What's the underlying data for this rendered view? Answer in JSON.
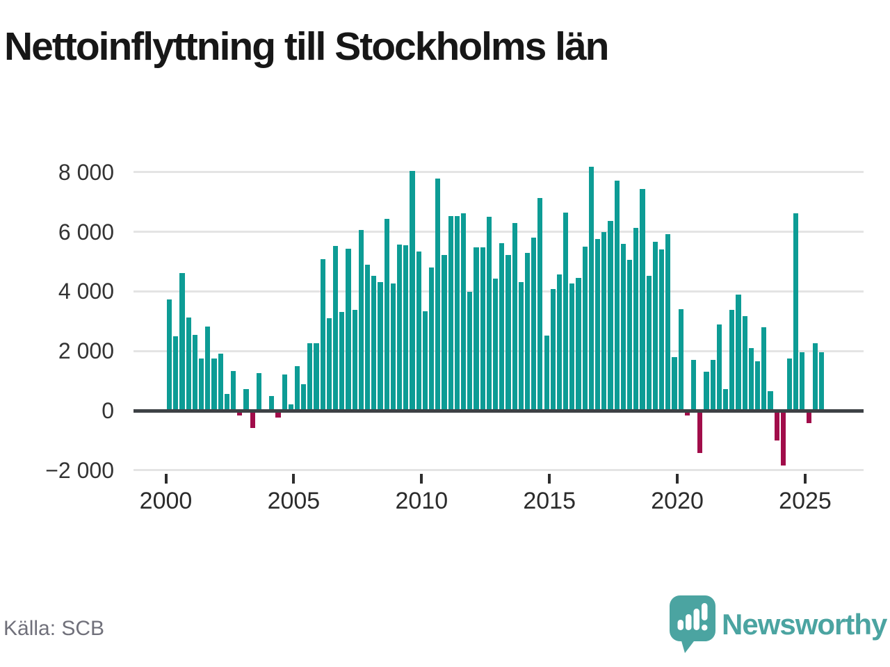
{
  "title": "Nettoinflyttning till Stockholms län",
  "source": "Källa: SCB",
  "logo": {
    "text": "Newsworthy",
    "color": "#4ba4a1",
    "icon": "newsworthy-speech-bubble-bar-chart-icon"
  },
  "chart_data": {
    "type": "bar",
    "title": "Nettoinflyttning till Stockholms län",
    "frequency": "quarterly",
    "start_quarter": "2000 Q1",
    "end_quarter": "2025 Q3",
    "grid": "horizontal",
    "legend": "none",
    "ylim": [
      -2000,
      8600
    ],
    "positive_color": "#0d9c95",
    "negative_color": "#a10d4a",
    "zero_line_color": "#3d4145",
    "y_ticks": [
      {
        "label": "8 000",
        "value": 8000
      },
      {
        "label": "6 000",
        "value": 6000
      },
      {
        "label": "4 000",
        "value": 4000
      },
      {
        "label": "2 000",
        "value": 2000
      },
      {
        "label": "0",
        "value": 0
      },
      {
        "label": "−2 000",
        "value": -2000
      }
    ],
    "x_ticks": [
      {
        "label": "2000",
        "year": 2000
      },
      {
        "label": "2005",
        "year": 2005
      },
      {
        "label": "2010",
        "year": 2010
      },
      {
        "label": "2015",
        "year": 2015
      },
      {
        "label": "2020",
        "year": 2020
      },
      {
        "label": "2025",
        "year": 2025
      }
    ],
    "values": [
      3720,
      2490,
      4620,
      3120,
      2540,
      1750,
      2830,
      1750,
      1910,
      560,
      1320,
      -140,
      720,
      -560,
      1260,
      0,
      500,
      -230,
      1210,
      210,
      1490,
      880,
      2260,
      2270,
      5090,
      3100,
      5530,
      3300,
      5420,
      3390,
      6060,
      4890,
      4530,
      4320,
      6430,
      4270,
      5580,
      5550,
      8050,
      5340,
      3330,
      4800,
      7780,
      5220,
      6520,
      6520,
      6620,
      3980,
      5480,
      5480,
      6510,
      4440,
      5620,
      5210,
      6290,
      4310,
      5300,
      5800,
      7140,
      2520,
      4080,
      4560,
      6650,
      4260,
      4450,
      5490,
      8180,
      5750,
      6000,
      6370,
      7720,
      5600,
      5050,
      6140,
      7430,
      4530,
      5660,
      5400,
      5910,
      1790,
      3400,
      -150,
      1700,
      -1400,
      1300,
      1700,
      2900,
      720,
      3380,
      3900,
      3160,
      2100,
      1650,
      2800,
      650,
      -980,
      -1830,
      1750,
      6630,
      1960,
      -410,
      2270,
      1960
    ]
  }
}
